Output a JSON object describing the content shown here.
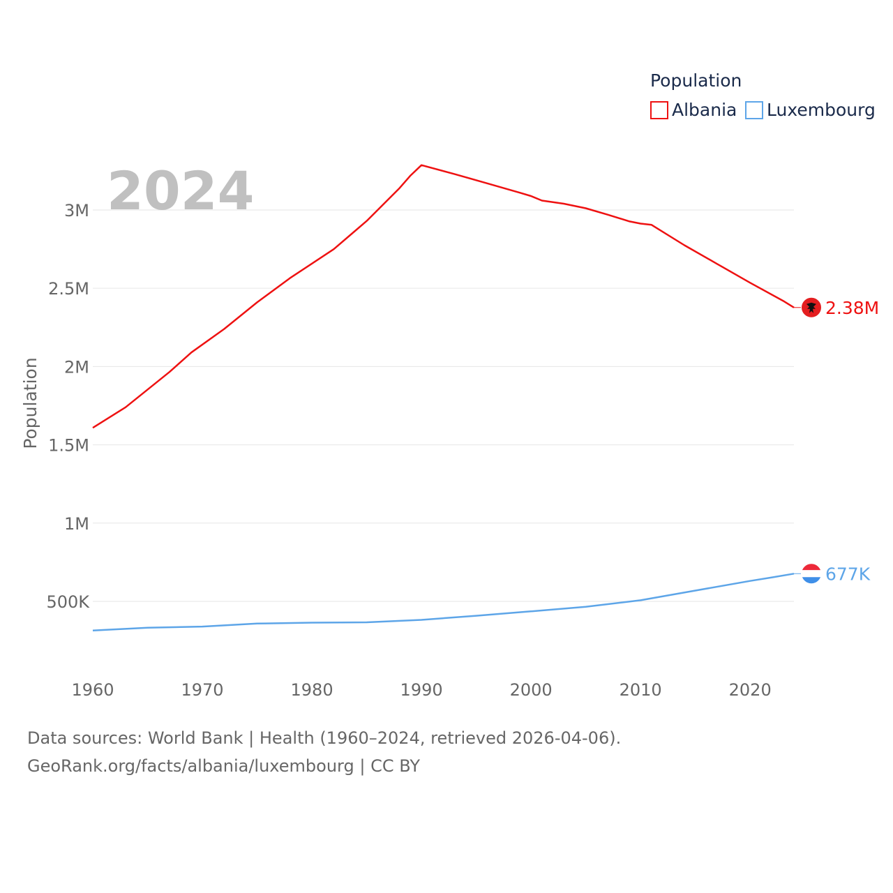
{
  "colors": {
    "albania": "#ee1111",
    "luxembourg": "#5da5e8",
    "grid": "#e6e6e6",
    "axis_text": "#666666",
    "legend_text": "#1a2a4a",
    "year_label": "#c0c0c0"
  },
  "chart_data": {
    "type": "line",
    "title": "",
    "ylabel": "Population",
    "xlabel": "",
    "xlim": [
      1960,
      2024
    ],
    "ylim": [
      130000,
      3450000
    ],
    "current_year": "2024",
    "legend": {
      "title": "Population",
      "position": "top-right"
    },
    "x_ticks": [
      {
        "value": 1960,
        "label": "1960"
      },
      {
        "value": 1970,
        "label": "1970"
      },
      {
        "value": 1980,
        "label": "1980"
      },
      {
        "value": 1990,
        "label": "1990"
      },
      {
        "value": 2000,
        "label": "2000"
      },
      {
        "value": 2010,
        "label": "2010"
      },
      {
        "value": 2020,
        "label": "2020"
      }
    ],
    "y_ticks": [
      {
        "value": 500000,
        "label": "500K"
      },
      {
        "value": 1000000,
        "label": "1M"
      },
      {
        "value": 1500000,
        "label": "1.5M"
      },
      {
        "value": 2000000,
        "label": "2M"
      },
      {
        "value": 2500000,
        "label": "2.5M"
      },
      {
        "value": 3000000,
        "label": "3M"
      }
    ],
    "series": [
      {
        "name": "Albania",
        "key": "albania",
        "color": "#ee1111",
        "end_label": "2.38M",
        "flag": "albania-flag-icon",
        "points": [
          [
            1960,
            1608800
          ],
          [
            1963,
            1740000
          ],
          [
            1967,
            1965000
          ],
          [
            1969,
            2090000
          ],
          [
            1972,
            2240000
          ],
          [
            1975,
            2410000
          ],
          [
            1978,
            2565000
          ],
          [
            1982,
            2750000
          ],
          [
            1985,
            2930000
          ],
          [
            1988,
            3140000
          ],
          [
            1989,
            3220000
          ],
          [
            1990,
            3286500
          ],
          [
            1993,
            3230000
          ],
          [
            1996,
            3170000
          ],
          [
            1999,
            3110000
          ],
          [
            2000,
            3089000
          ],
          [
            2001,
            3060000
          ],
          [
            2003,
            3040000
          ],
          [
            2005,
            3011000
          ],
          [
            2007,
            2970000
          ],
          [
            2009,
            2927000
          ],
          [
            2010,
            2913000
          ],
          [
            2011,
            2905000
          ],
          [
            2014,
            2775000
          ],
          [
            2017,
            2655000
          ],
          [
            2020,
            2535000
          ],
          [
            2023,
            2420000
          ],
          [
            2024,
            2377000
          ]
        ]
      },
      {
        "name": "Luxembourg",
        "key": "luxembourg",
        "color": "#5da5e8",
        "end_label": "677K",
        "flag": "luxembourg-flag-icon",
        "points": [
          [
            1960,
            313970
          ],
          [
            1965,
            332000
          ],
          [
            1970,
            339000
          ],
          [
            1975,
            358000
          ],
          [
            1980,
            364000
          ],
          [
            1985,
            366000
          ],
          [
            1990,
            381850
          ],
          [
            1995,
            408000
          ],
          [
            2000,
            436300
          ],
          [
            2005,
            465000
          ],
          [
            2010,
            506950
          ],
          [
            2015,
            569000
          ],
          [
            2020,
            630400
          ],
          [
            2022,
            653000
          ],
          [
            2024,
            677000
          ]
        ]
      }
    ]
  },
  "source": {
    "line1": "Data sources: World Bank | Health (1960–2024, retrieved 2026-04-06).",
    "line2": "GeoRank.org/facts/albania/luxembourg | CC BY"
  }
}
